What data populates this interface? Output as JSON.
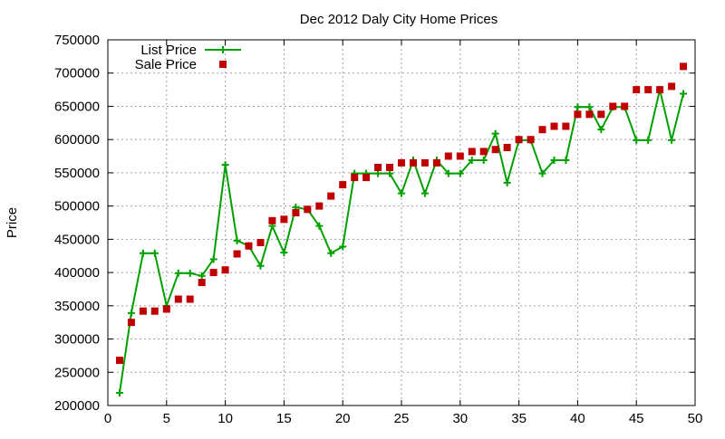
{
  "chart_data": {
    "type": "line",
    "title": "Dec 2012 Daly City Home Prices",
    "xlabel": "",
    "ylabel": "Price",
    "xlim": [
      0,
      50
    ],
    "ylim": [
      200000,
      750000
    ],
    "xticks": [
      0,
      5,
      10,
      15,
      20,
      25,
      30,
      35,
      40,
      45,
      50
    ],
    "yticks": [
      200000,
      250000,
      300000,
      350000,
      400000,
      450000,
      500000,
      550000,
      600000,
      650000,
      700000,
      750000
    ],
    "xtick_labels": [
      "0",
      "5",
      "10",
      "15",
      "20",
      "25",
      "30",
      "35",
      "40",
      "45",
      "50"
    ],
    "ytick_labels": [
      "200000",
      "250000",
      "300000",
      "350000",
      "400000",
      "450000",
      "500000",
      "550000",
      "600000",
      "650000",
      "700000",
      "750000"
    ],
    "grid": true,
    "legend_position": "top-left",
    "series": [
      {
        "name": "List Price",
        "style": "line-plus",
        "color": "#00a000",
        "x": [
          1,
          2,
          3,
          4,
          5,
          6,
          7,
          8,
          9,
          10,
          11,
          12,
          13,
          14,
          15,
          16,
          17,
          18,
          19,
          20,
          21,
          22,
          23,
          24,
          25,
          26,
          27,
          28,
          29,
          30,
          31,
          32,
          33,
          34,
          35,
          36,
          37,
          38,
          39,
          40,
          41,
          42,
          43,
          44,
          45,
          46,
          47,
          48,
          49
        ],
        "values": [
          219000,
          339000,
          429000,
          429000,
          350000,
          399000,
          399000,
          395000,
          420000,
          562000,
          448000,
          440000,
          410000,
          470000,
          430000,
          498000,
          495000,
          470000,
          429000,
          439000,
          549000,
          549000,
          549000,
          549000,
          519000,
          569000,
          519000,
          569000,
          549000,
          549000,
          569000,
          569000,
          609000,
          535000,
          599000,
          599000,
          549000,
          569000,
          569000,
          649000,
          649000,
          615000,
          649000,
          649000,
          599000,
          599000,
          675000,
          599000,
          669000
        ]
      },
      {
        "name": "Sale Price",
        "style": "square-markers",
        "color": "#c00000",
        "x": [
          1,
          2,
          3,
          4,
          5,
          6,
          7,
          8,
          9,
          10,
          11,
          12,
          13,
          14,
          15,
          16,
          17,
          18,
          19,
          20,
          21,
          22,
          23,
          24,
          25,
          26,
          27,
          28,
          29,
          30,
          31,
          32,
          33,
          34,
          35,
          36,
          37,
          38,
          39,
          40,
          41,
          42,
          43,
          44,
          45,
          46,
          47,
          48,
          49
        ],
        "values": [
          268000,
          325000,
          342000,
          342000,
          345000,
          360000,
          360000,
          385000,
          400000,
          404000,
          428000,
          440000,
          445000,
          478000,
          480000,
          490000,
          495000,
          500000,
          515000,
          532000,
          543000,
          543000,
          558000,
          558000,
          565000,
          565000,
          565000,
          565000,
          575000,
          575000,
          582000,
          582000,
          585000,
          588000,
          600000,
          600000,
          615000,
          620000,
          620000,
          638000,
          638000,
          638000,
          650000,
          650000,
          675000,
          675000,
          675000,
          680000,
          710000
        ]
      }
    ]
  }
}
